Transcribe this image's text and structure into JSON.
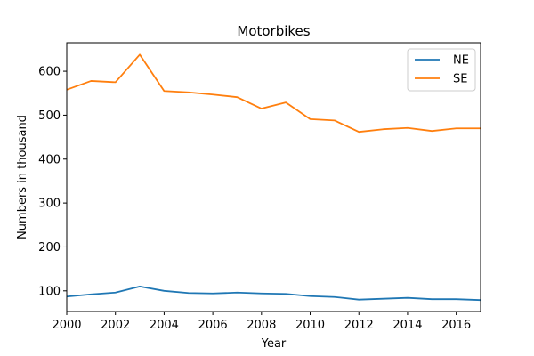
{
  "chart_data": {
    "type": "line",
    "title": "Motorbikes",
    "xlabel": "Year",
    "ylabel": "Numbers in thousand",
    "xlim": [
      2000,
      2017
    ],
    "ylim": [
      53,
      665
    ],
    "xticks": [
      2000,
      2002,
      2004,
      2006,
      2008,
      2010,
      2012,
      2014,
      2016
    ],
    "yticks": [
      100,
      200,
      300,
      400,
      500,
      600
    ],
    "grid": false,
    "legend_position": "top-right",
    "x": [
      2000,
      2001,
      2002,
      2003,
      2004,
      2005,
      2006,
      2007,
      2008,
      2009,
      2010,
      2011,
      2012,
      2013,
      2014,
      2015,
      2016,
      2017
    ],
    "series": [
      {
        "name": "NE",
        "color": "#1f77b4",
        "values": [
          87,
          92,
          96,
          110,
          100,
          95,
          94,
          96,
          94,
          93,
          88,
          86,
          80,
          82,
          84,
          81,
          81,
          79
        ]
      },
      {
        "name": "SE",
        "color": "#ff7f0e",
        "values": [
          558,
          578,
          575,
          638,
          555,
          552,
          547,
          541,
          515,
          529,
          491,
          488,
          462,
          468,
          471,
          464,
          470,
          470
        ]
      }
    ]
  }
}
